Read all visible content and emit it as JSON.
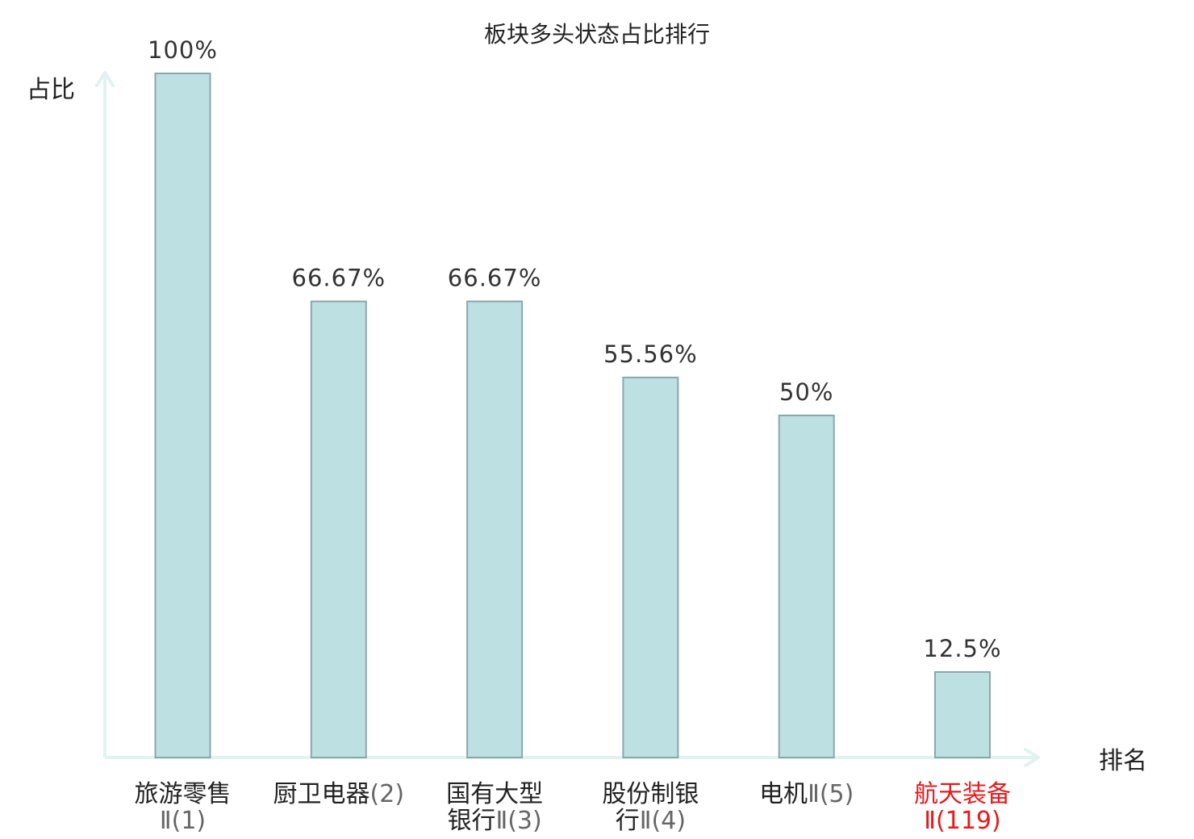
{
  "chart_data": {
    "type": "bar",
    "title": "板块多头状态占比排行",
    "ylabel": "占比",
    "xlabel": "排名",
    "ylim": [
      0,
      100
    ],
    "grid": false,
    "categories": [
      {
        "lines": [
          "旅游零售",
          "Ⅱ(1)"
        ],
        "highlight": false
      },
      {
        "lines": [
          "厨卫电器(2)"
        ],
        "highlight": false
      },
      {
        "lines": [
          "国有大型",
          "银行Ⅱ(3)"
        ],
        "highlight": false
      },
      {
        "lines": [
          "股份制银",
          "行Ⅱ(4)"
        ],
        "highlight": false
      },
      {
        "lines": [
          "电机Ⅱ(5)"
        ],
        "highlight": false
      },
      {
        "lines": [
          "航天装备",
          "Ⅱ(119)"
        ],
        "highlight": true
      }
    ],
    "values": [
      100,
      66.67,
      66.67,
      55.56,
      50,
      12.5
    ],
    "value_labels": [
      "100%",
      "66.67%",
      "66.67%",
      "55.56%",
      "50%",
      "12.5%"
    ],
    "colors": {
      "bar_fill": "#bde0e3",
      "bar_stroke": "#8aa8ac",
      "axis": "#e0f3f1",
      "highlight": "#e8191c",
      "text": "#222222"
    }
  }
}
